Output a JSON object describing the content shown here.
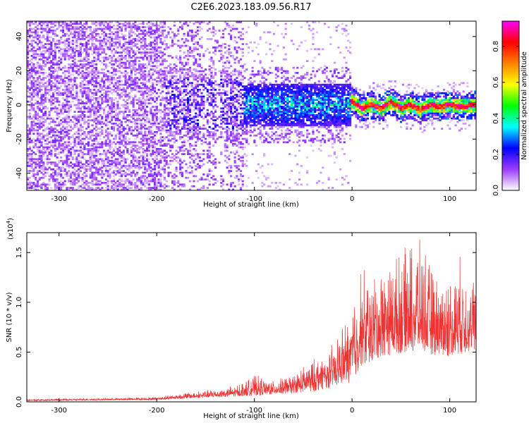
{
  "title": "C2E6.2023.183.09.56.R17",
  "chart_data": [
    {
      "type": "heatmap",
      "xlabel": "Height of straight line (km)",
      "ylabel": "Frequency (Hz)",
      "xlim": [
        -333,
        127
      ],
      "ylim": [
        -50,
        49
      ],
      "xticks": [
        -300,
        -200,
        -100,
        0,
        100
      ],
      "yticks": [
        -40,
        -20,
        0,
        20,
        40
      ],
      "colorbar": {
        "label": "Normalized spectral amplitude",
        "range": [
          0,
          0.94
        ],
        "ticks": [
          "0.0",
          "0.2",
          "0.4",
          "0.6",
          "0.8"
        ],
        "colormap": [
          "#ffffff",
          "#9c3bff",
          "#0000ff",
          "#00ffff",
          "#00ff00",
          "#ffff00",
          "#ff8000",
          "#ff0000",
          "#ff00ff"
        ]
      },
      "regions": [
        {
          "x_range": [
            -333,
            -190
          ],
          "freq_spread": "full band",
          "amplitude": [
            0.02,
            0.15
          ]
        },
        {
          "x_range": [
            -190,
            -110
          ],
          "freq_spread": "full band, concentrated within +/-20 Hz",
          "amplitude": [
            0.05,
            0.25
          ]
        },
        {
          "x_range": [
            -110,
            0
          ],
          "freq_center": 0,
          "freq_halfwidth": 12,
          "amplitude": [
            0.15,
            0.45
          ]
        },
        {
          "x_range": [
            0,
            127
          ],
          "freq_center": 0,
          "freq_halfwidth": 5,
          "amplitude": [
            0.4,
            0.94
          ]
        }
      ],
      "ridge": [
        [
          0,
          2
        ],
        [
          10,
          -2
        ],
        [
          20,
          0
        ],
        [
          30,
          -2
        ],
        [
          40,
          2
        ],
        [
          50,
          -2
        ],
        [
          60,
          0
        ],
        [
          70,
          -3
        ],
        [
          80,
          0
        ],
        [
          90,
          -1
        ],
        [
          100,
          0
        ],
        [
          110,
          -1
        ],
        [
          127,
          0
        ]
      ]
    },
    {
      "type": "area",
      "xlabel": "Height of straight line (km)",
      "ylabel": "SNR (10 * v/v)",
      "y_multiplier": "(x10",
      "y_multiplier_exp": "4",
      "y_multiplier_close": ")",
      "xlim": [
        -333,
        127
      ],
      "ylim": [
        0,
        1.7
      ],
      "xticks": [
        -300,
        -200,
        -100,
        0,
        100
      ],
      "yticks": [
        "0.0",
        "0.5",
        "1.0",
        "1.5"
      ],
      "color": "#ef3333",
      "envelope": [
        [
          -333,
          0.03
        ],
        [
          -250,
          0.04
        ],
        [
          -200,
          0.05
        ],
        [
          -170,
          0.1
        ],
        [
          -150,
          0.12
        ],
        [
          -120,
          0.17
        ],
        [
          -100,
          0.28
        ],
        [
          -80,
          0.22
        ],
        [
          -60,
          0.3
        ],
        [
          -40,
          0.45
        ],
        [
          -20,
          0.6
        ],
        [
          -5,
          0.9
        ],
        [
          0,
          1.1
        ],
        [
          10,
          1.45
        ],
        [
          20,
          1.3
        ],
        [
          35,
          1.5
        ],
        [
          50,
          1.55
        ],
        [
          60,
          1.65
        ],
        [
          70,
          1.68
        ],
        [
          85,
          1.35
        ],
        [
          100,
          1.3
        ],
        [
          110,
          1.5
        ],
        [
          120,
          1.35
        ],
        [
          127,
          1.3
        ]
      ],
      "baseline": [
        [
          -333,
          0.01
        ],
        [
          -200,
          0.02
        ],
        [
          -100,
          0.06
        ],
        [
          -40,
          0.1
        ],
        [
          0,
          0.2
        ],
        [
          10,
          0.35
        ],
        [
          30,
          0.45
        ],
        [
          60,
          0.5
        ],
        [
          100,
          0.45
        ],
        [
          127,
          0.5
        ]
      ]
    }
  ]
}
